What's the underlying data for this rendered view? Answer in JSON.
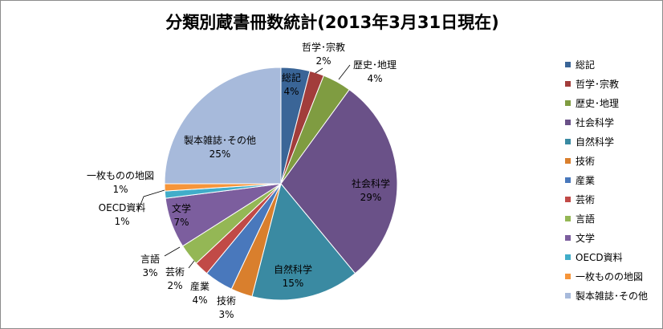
{
  "chart_data": {
    "type": "pie",
    "title": "分類別蔵書冊数統計(2013年3月31日現在)",
    "categories": [
      "総記",
      "哲学･宗教",
      "歴史･地理",
      "社会科学",
      "自然科学",
      "技術",
      "産業",
      "芸術",
      "言語",
      "文学",
      "OECD資料",
      "一枚ものの地図",
      "製本雑誌･その他"
    ],
    "values": [
      4,
      2,
      4,
      29,
      15,
      3,
      4,
      2,
      3,
      7,
      1,
      1,
      25
    ],
    "value_labels": [
      "4%",
      "2%",
      "4%",
      "29%",
      "15%",
      "3%",
      "4%",
      "2%",
      "3%",
      "7%",
      "1%",
      "1%",
      "25%"
    ],
    "colors": [
      "#3A6597",
      "#A23D3B",
      "#7F9C41",
      "#6A5188",
      "#3A8AA2",
      "#D97F2D",
      "#4978BC",
      "#C14A47",
      "#94B755",
      "#7C5E9E",
      "#41ADC9",
      "#F6953A",
      "#A7BADB"
    ],
    "legend_position": "right",
    "start_angle_deg": 0,
    "direction": "clockwise"
  }
}
